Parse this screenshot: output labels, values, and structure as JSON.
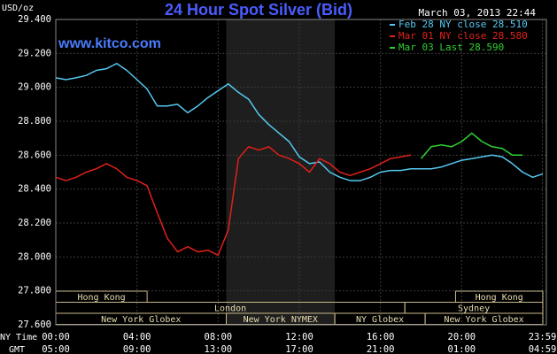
{
  "chart_data": {
    "type": "line",
    "title": "24 Hour Spot Silver (Bid)",
    "y_label": "USD/oz",
    "timestamp": "March 03, 2013 22:44",
    "watermark": "www.kitco.com",
    "x_row_labels": [
      "NY Time",
      "GMT"
    ],
    "x": [
      0,
      0.5,
      1,
      1.5,
      2,
      2.5,
      3,
      3.5,
      4,
      4.5,
      5,
      5.5,
      6,
      6.5,
      7,
      7.5,
      8,
      8.5,
      9,
      9.5,
      10,
      10.5,
      11,
      11.5,
      12,
      12.5,
      13,
      13.5,
      14,
      14.5,
      15,
      15.5,
      16,
      16.5,
      17,
      17.5,
      18,
      18.5,
      19,
      19.5,
      20,
      20.5,
      21,
      21.5,
      22,
      22.5,
      23,
      23.5,
      24
    ],
    "series": [
      {
        "name": "Feb 28 NY close 28.510",
        "color": "#55c8f0",
        "values": [
          29.056,
          29.045,
          29.056,
          29.07,
          29.1,
          29.11,
          29.14,
          29.1,
          29.045,
          28.99,
          28.89,
          28.89,
          28.9,
          28.85,
          28.89,
          28.94,
          28.98,
          29.02,
          28.97,
          28.93,
          28.84,
          28.78,
          28.73,
          28.68,
          28.59,
          28.55,
          28.56,
          28.5,
          28.47,
          28.45,
          28.45,
          28.47,
          28.5,
          28.51,
          28.51,
          28.52,
          28.52,
          28.52,
          28.53,
          28.55,
          28.57,
          28.58,
          28.59,
          28.6,
          28.59,
          28.55,
          28.5,
          28.47,
          28.49
        ]
      },
      {
        "name": "Mar 01 NY close 28.580",
        "color": "#e0201a",
        "values": [
          28.47,
          28.45,
          28.47,
          28.5,
          28.52,
          28.55,
          28.52,
          28.47,
          28.45,
          28.42,
          28.26,
          28.11,
          28.03,
          28.06,
          28.03,
          28.04,
          28.01,
          28.16,
          28.58,
          28.65,
          28.63,
          28.65,
          28.6,
          28.58,
          28.55,
          28.5,
          28.58,
          28.55,
          28.5,
          28.48,
          28.5,
          28.52,
          28.55,
          28.58,
          28.59,
          28.6,
          null,
          null,
          null,
          null,
          null,
          null,
          null,
          null,
          null,
          null,
          null,
          null,
          null
        ]
      },
      {
        "name": "Mar 03 Last 28.590",
        "color": "#30d030",
        "values": [
          null,
          null,
          null,
          null,
          null,
          null,
          null,
          null,
          null,
          null,
          null,
          null,
          null,
          null,
          null,
          null,
          null,
          null,
          null,
          null,
          null,
          null,
          null,
          null,
          null,
          null,
          null,
          null,
          null,
          null,
          null,
          null,
          null,
          null,
          null,
          null,
          28.58,
          28.65,
          28.66,
          28.65,
          28.68,
          28.73,
          28.68,
          28.65,
          28.64,
          28.6,
          28.6,
          null,
          null
        ]
      }
    ],
    "xlim": [
      0,
      24
    ],
    "xticks": [
      {
        "value": 0,
        "label": "00:00"
      },
      {
        "value": 4,
        "label": "04:00"
      },
      {
        "value": 8,
        "label": "08:00"
      },
      {
        "value": 12,
        "label": "12:00"
      },
      {
        "value": 16,
        "label": "16:00"
      },
      {
        "value": 20,
        "label": "20:00"
      },
      {
        "value": 23.98,
        "label": "23:59"
      }
    ],
    "x2ticks": [
      {
        "value": 0,
        "label": "05:00"
      },
      {
        "value": 4,
        "label": "09:00"
      },
      {
        "value": 8,
        "label": "13:00"
      },
      {
        "value": 12,
        "label": "17:00"
      },
      {
        "value": 16,
        "label": "21:00"
      },
      {
        "value": 20,
        "label": "01:00"
      },
      {
        "value": 23.98,
        "label": "04:59"
      }
    ],
    "ylim": [
      27.6,
      29.4
    ],
    "yticks": [
      {
        "value": 27.6,
        "label": "27.600"
      },
      {
        "value": 27.8,
        "label": "27.800"
      },
      {
        "value": 28.0,
        "label": "28.000"
      },
      {
        "value": 28.2,
        "label": "28.200"
      },
      {
        "value": 28.4,
        "label": "28.400"
      },
      {
        "value": 28.6,
        "label": "28.600"
      },
      {
        "value": 28.8,
        "label": "28.800"
      },
      {
        "value": 29.0,
        "label": "29.000"
      },
      {
        "value": 29.2,
        "label": "29.200"
      },
      {
        "value": 29.4,
        "label": "29.400"
      }
    ],
    "grid": true,
    "highlight": [
      8.4,
      13.75
    ],
    "sessions": [
      {
        "label": "Hong Kong",
        "start": 0,
        "end": 4.5,
        "row": 0
      },
      {
        "label": "Hong Kong",
        "start": 19.7,
        "end": 24,
        "row": 0
      },
      {
        "label": "London",
        "start": 0,
        "end": 17.2,
        "row": 1
      },
      {
        "label": "Sydney",
        "start": 17.2,
        "end": 24,
        "row": 1
      },
      {
        "label": "New York Globex",
        "start": 0,
        "end": 8.4,
        "row": 2
      },
      {
        "label": "New York NYMEX",
        "start": 8.4,
        "end": 13.75,
        "row": 2
      },
      {
        "label": "NY Globex",
        "start": 13.75,
        "end": 18.2,
        "row": 2
      },
      {
        "label": "New York Globex",
        "start": 18.2,
        "end": 24,
        "row": 2
      }
    ]
  }
}
